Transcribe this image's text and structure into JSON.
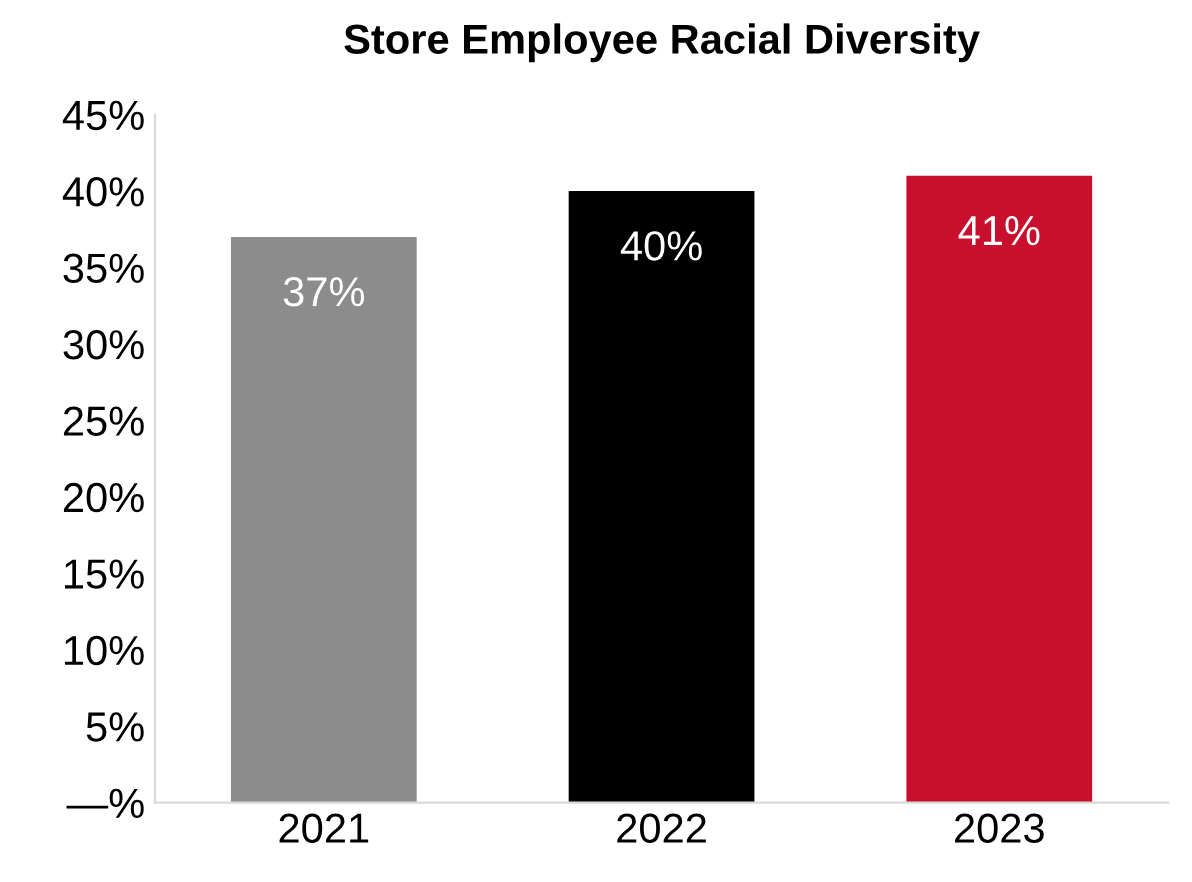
{
  "chart_data": {
    "type": "bar",
    "title": "Store Employee Racial Diversity",
    "categories": [
      "2021",
      "2022",
      "2023"
    ],
    "values": [
      37,
      40,
      41
    ],
    "colors": [
      "#8c8c8c",
      "#000000",
      "#c8102e"
    ],
    "value_labels": [
      "37%",
      "40%",
      "41%"
    ],
    "ylim": [
      0,
      45
    ],
    "yticks": [
      {
        "value": 0,
        "label": "—%"
      },
      {
        "value": 5,
        "label": "5%"
      },
      {
        "value": 10,
        "label": "10%"
      },
      {
        "value": 15,
        "label": "15%"
      },
      {
        "value": 20,
        "label": "20%"
      },
      {
        "value": 25,
        "label": "25%"
      },
      {
        "value": 30,
        "label": "30%"
      },
      {
        "value": 35,
        "label": "35%"
      },
      {
        "value": 40,
        "label": "40%"
      },
      {
        "value": 45,
        "label": "45%"
      }
    ],
    "grid": false,
    "legend": false
  }
}
